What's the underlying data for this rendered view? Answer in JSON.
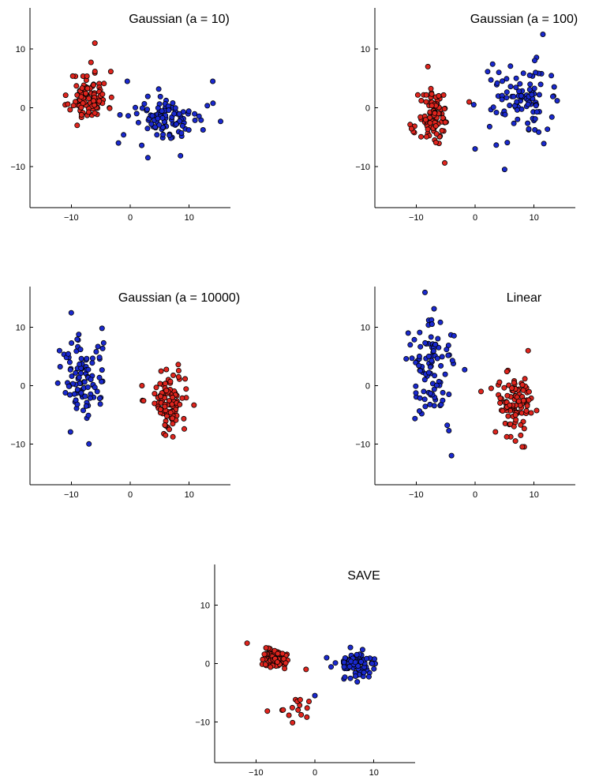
{
  "chart_data": [
    {
      "type": "scatter",
      "title": "Gaussian (a = 10)",
      "xlabel": "",
      "ylabel": "",
      "xlim": [
        -17,
        17
      ],
      "ylim": [
        -17,
        17
      ],
      "xticks": [
        -10,
        0,
        10
      ],
      "yticks": [
        -10,
        0,
        10
      ],
      "grid": false,
      "series": [
        {
          "color": "#e0251e",
          "clusters": [
            {
              "center": [
                -7,
                2
              ],
              "spread": [
                1.6,
                2.1
              ],
              "n": 95,
              "seed": 11,
              "extra": [
                [
                  -6,
                  11
                ],
                [
                  -9,
                  -3
                ]
              ]
            }
          ]
        },
        {
          "color": "#1a29cf",
          "clusters": [
            {
              "center": [
                6.5,
                -2
              ],
              "spread": [
                3.1,
                2.0
              ],
              "n": 95,
              "seed": 12,
              "extra": [
                [
                  14,
                  4.5
                ],
                [
                  -0.5,
                  4.5
                ],
                [
                  -2,
                  -6
                ],
                [
                  3,
                  -8.5
                ]
              ]
            }
          ]
        }
      ]
    },
    {
      "type": "scatter",
      "title": "Gaussian (a = 100)",
      "xlabel": "",
      "ylabel": "",
      "xlim": [
        -17,
        17
      ],
      "ylim": [
        -17,
        17
      ],
      "xticks": [
        -10,
        0,
        10
      ],
      "yticks": [
        -10,
        0,
        10
      ],
      "grid": false,
      "series": [
        {
          "color": "#e0251e",
          "clusters": [
            {
              "center": [
                -7,
                -2
              ],
              "spread": [
                1.3,
                2.4
              ],
              "n": 95,
              "seed": 21,
              "extra": [
                [
                  -8,
                  7
                ],
                [
                  -1,
                  1
                ]
              ]
            }
          ]
        },
        {
          "color": "#1a29cf",
          "clusters": [
            {
              "center": [
                7.5,
                1.5
              ],
              "spread": [
                2.6,
                2.8
              ],
              "n": 95,
              "seed": 22,
              "extra": [
                [
                  11.5,
                  12.5
                ],
                [
                  5,
                  -10.5
                ],
                [
                  0,
                  -7
                ]
              ]
            }
          ]
        }
      ]
    },
    {
      "type": "scatter",
      "title": "Gaussian (a = 10000)",
      "xlabel": "",
      "ylabel": "",
      "xlim": [
        -17,
        17
      ],
      "ylim": [
        -17,
        17
      ],
      "xticks": [
        -10,
        0,
        10
      ],
      "yticks": [
        -10,
        0,
        10
      ],
      "grid": false,
      "series": [
        {
          "color": "#1a29cf",
          "clusters": [
            {
              "center": [
                -8,
                1
              ],
              "spread": [
                2.0,
                3.6
              ],
              "n": 95,
              "seed": 31,
              "extra": [
                [
                  -10,
                  12.5
                ],
                [
                  -7,
                  -10
                ],
                [
                  -12,
                  6
                ]
              ]
            }
          ]
        },
        {
          "color": "#e0251e",
          "clusters": [
            {
              "center": [
                6.5,
                -2.5
              ],
              "spread": [
                1.6,
                2.6
              ],
              "n": 95,
              "seed": 32,
              "extra": [
                [
                  6,
                  -8.5
                ],
                [
                  2,
                  0
                ]
              ]
            }
          ]
        }
      ]
    },
    {
      "type": "scatter",
      "title": "Linear",
      "xlabel": "",
      "ylabel": "",
      "xlim": [
        -17,
        17
      ],
      "ylim": [
        -17,
        17
      ],
      "xticks": [
        -10,
        0,
        10
      ],
      "yticks": [
        -10,
        0,
        10
      ],
      "grid": false,
      "series": [
        {
          "color": "#1a29cf",
          "clusters": [
            {
              "center": [
                -7,
                3
              ],
              "spread": [
                2.0,
                4.2
              ],
              "n": 95,
              "seed": 41,
              "extra": [
                [
                  -8.5,
                  16
                ],
                [
                  -4,
                  -12
                ],
                [
                  -11,
                  7
                ]
              ]
            }
          ]
        },
        {
          "color": "#e0251e",
          "clusters": [
            {
              "center": [
                6.5,
                -3
              ],
              "spread": [
                1.6,
                2.8
              ],
              "n": 95,
              "seed": 42,
              "extra": [
                [
                  9,
                  6
                ],
                [
                  8,
                  -10.5
                ],
                [
                  1,
                  -1
                ]
              ]
            }
          ]
        }
      ]
    },
    {
      "type": "scatter",
      "title": "SAVE",
      "xlabel": "",
      "ylabel": "",
      "xlim": [
        -17,
        17
      ],
      "ylim": [
        -17,
        17
      ],
      "xticks": [
        -10,
        0,
        10
      ],
      "yticks": [
        -10,
        0,
        10
      ],
      "grid": false,
      "series": [
        {
          "color": "#e0251e",
          "clusters": [
            {
              "center": [
                -7,
                1
              ],
              "spread": [
                1.2,
                0.9
              ],
              "n": 80,
              "seed": 51,
              "extra": [
                [
                  -11.5,
                  3.5
                ],
                [
                  -1.5,
                  -1
                ]
              ]
            },
            {
              "center": [
                -4,
                -8
              ],
              "spread": [
                1.6,
                1.1
              ],
              "n": 14,
              "seed": 52,
              "extra": [
                [
                  -1,
                  -6.5
                ]
              ]
            }
          ]
        },
        {
          "color": "#1a29cf",
          "clusters": [
            {
              "center": [
                7,
                0
              ],
              "spread": [
                1.6,
                1.1
              ],
              "n": 92,
              "seed": 53,
              "extra": [
                [
                  0,
                  -5.5
                ],
                [
                  2,
                  1
                ]
              ]
            }
          ]
        }
      ]
    }
  ]
}
